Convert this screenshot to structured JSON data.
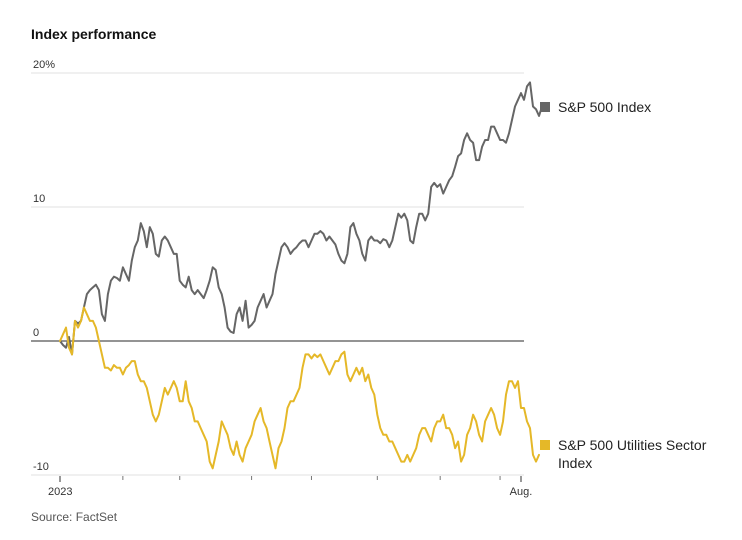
{
  "title": "Index performance",
  "source": "Source: FactSet",
  "colors": {
    "sp500": "#666666",
    "utilities": "#e5b828",
    "grid": "#e2e2e2",
    "zero": "#555555"
  },
  "chart_data": {
    "type": "line",
    "title": "Index performance",
    "ylim": [
      -10,
      20
    ],
    "y_ticks": [
      {
        "value": 20,
        "label": "20%"
      },
      {
        "value": 10,
        "label": "10"
      },
      {
        "value": 0,
        "label": "0"
      },
      {
        "value": -10,
        "label": "-10"
      }
    ],
    "x_domain": [
      0,
      155
    ],
    "x_tick_labels": [
      {
        "x": 0,
        "label": "2023"
      },
      {
        "x": 154,
        "label": "Aug."
      }
    ],
    "x_minor_ticks": [
      21,
      40,
      64,
      84,
      106,
      127,
      147
    ],
    "grid": true,
    "legend": "right, beside line ends",
    "series": [
      {
        "name": "S&P 500 Index",
        "color": "#666666",
        "values": [
          0,
          -0.3,
          -0.5,
          0.3,
          -1.0,
          1.5,
          1.3,
          1.5,
          2.5,
          3.5,
          3.8,
          4.0,
          4.2,
          3.8,
          2.0,
          1.5,
          3.5,
          4.5,
          4.8,
          4.7,
          4.5,
          5.5,
          5.0,
          4.5,
          6.0,
          7.0,
          7.5,
          8.8,
          8.2,
          7.0,
          8.5,
          8.0,
          6.5,
          6.3,
          7.5,
          7.8,
          7.5,
          7.0,
          6.5,
          6.5,
          4.5,
          4.2,
          4.0,
          4.8,
          3.8,
          3.5,
          3.8,
          3.5,
          3.2,
          3.8,
          4.5,
          5.5,
          5.3,
          4.0,
          3.5,
          2.5,
          1.0,
          0.7,
          0.6,
          2.0,
          2.5,
          1.5,
          3.0,
          1.0,
          1.2,
          1.5,
          2.5,
          3.0,
          3.5,
          2.5,
          3.0,
          3.5,
          5.0,
          6.0,
          7.0,
          7.3,
          7.0,
          6.5,
          6.8,
          7.0,
          7.3,
          7.5,
          7.5,
          7.0,
          7.5,
          8.0,
          8.0,
          8.2,
          8.0,
          7.5,
          7.8,
          7.5,
          7.2,
          6.5,
          6.0,
          5.8,
          6.5,
          8.5,
          8.8,
          8.0,
          7.5,
          6.5,
          6.0,
          7.5,
          7.8,
          7.5,
          7.5,
          7.3,
          7.6,
          7.5,
          7.0,
          7.5,
          8.5,
          9.5,
          9.2,
          9.5,
          9.0,
          7.5,
          7.3,
          8.5,
          9.5,
          9.5,
          9.0,
          9.5,
          11.5,
          11.8,
          11.5,
          11.7,
          11.0,
          11.5,
          12.0,
          12.3,
          13.0,
          13.8,
          14.0,
          15.0,
          15.5,
          15.0,
          14.8,
          13.5,
          13.5,
          14.5,
          15.0,
          15.0,
          16.0,
          16.0,
          15.5,
          15.0,
          15.0,
          14.8,
          15.5,
          16.5,
          17.5,
          18.0,
          18.5,
          18.0,
          19.0,
          19.3,
          17.5,
          17.3,
          16.8,
          17.5
        ],
        "end_value": 17.5
      },
      {
        "name": "S&P 500 Utilities Sector Index",
        "color": "#e5b828",
        "values": [
          0,
          0.5,
          1.0,
          -0.5,
          -1.0,
          1.5,
          1.0,
          1.5,
          2.5,
          2.0,
          1.5,
          1.5,
          1.0,
          0.0,
          -1.0,
          -2.0,
          -2.0,
          -2.2,
          -1.8,
          -2.0,
          -2.0,
          -2.5,
          -2.0,
          -1.8,
          -1.5,
          -1.5,
          -2.5,
          -3.0,
          -3.0,
          -3.5,
          -4.5,
          -5.5,
          -6.0,
          -5.5,
          -4.5,
          -3.5,
          -4.0,
          -3.5,
          -3.0,
          -3.5,
          -4.5,
          -4.5,
          -3.0,
          -4.5,
          -5.0,
          -6.0,
          -6.0,
          -6.5,
          -7.0,
          -7.5,
          -9.0,
          -9.5,
          -8.5,
          -7.5,
          -6.0,
          -6.5,
          -7.0,
          -8.0,
          -8.5,
          -7.5,
          -8.5,
          -9.0,
          -8.0,
          -7.5,
          -7.0,
          -6.0,
          -5.5,
          -5.0,
          -6.0,
          -6.5,
          -7.5,
          -8.5,
          -9.5,
          -8.0,
          -7.5,
          -6.5,
          -5.0,
          -4.5,
          -4.5,
          -4.0,
          -3.5,
          -2.0,
          -1.0,
          -1.0,
          -1.3,
          -1.0,
          -1.2,
          -1.0,
          -1.5,
          -2.0,
          -2.5,
          -2.0,
          -1.5,
          -1.5,
          -1.0,
          -0.8,
          -2.5,
          -3.0,
          -2.5,
          -2.0,
          -2.5,
          -2.0,
          -3.0,
          -2.5,
          -3.5,
          -4.0,
          -5.5,
          -6.5,
          -7.0,
          -7.0,
          -7.5,
          -7.5,
          -8.0,
          -8.5,
          -9.0,
          -9.0,
          -8.5,
          -9.0,
          -8.5,
          -8.0,
          -7.0,
          -6.5,
          -6.5,
          -7.0,
          -7.5,
          -6.5,
          -6.0,
          -6.0,
          -5.5,
          -6.5,
          -6.5,
          -7.0,
          -8.0,
          -7.5,
          -9.0,
          -8.5,
          -7.0,
          -6.5,
          -5.5,
          -6.0,
          -7.0,
          -7.5,
          -6.0,
          -5.5,
          -5.0,
          -5.5,
          -6.5,
          -7.0,
          -6.0,
          -4.0,
          -3.0,
          -3.0,
          -3.5,
          -3.0,
          -5.0,
          -5.0,
          -6.0,
          -6.5,
          -8.5,
          -9.0,
          -8.5
        ],
        "end_value": -8.5
      }
    ]
  }
}
